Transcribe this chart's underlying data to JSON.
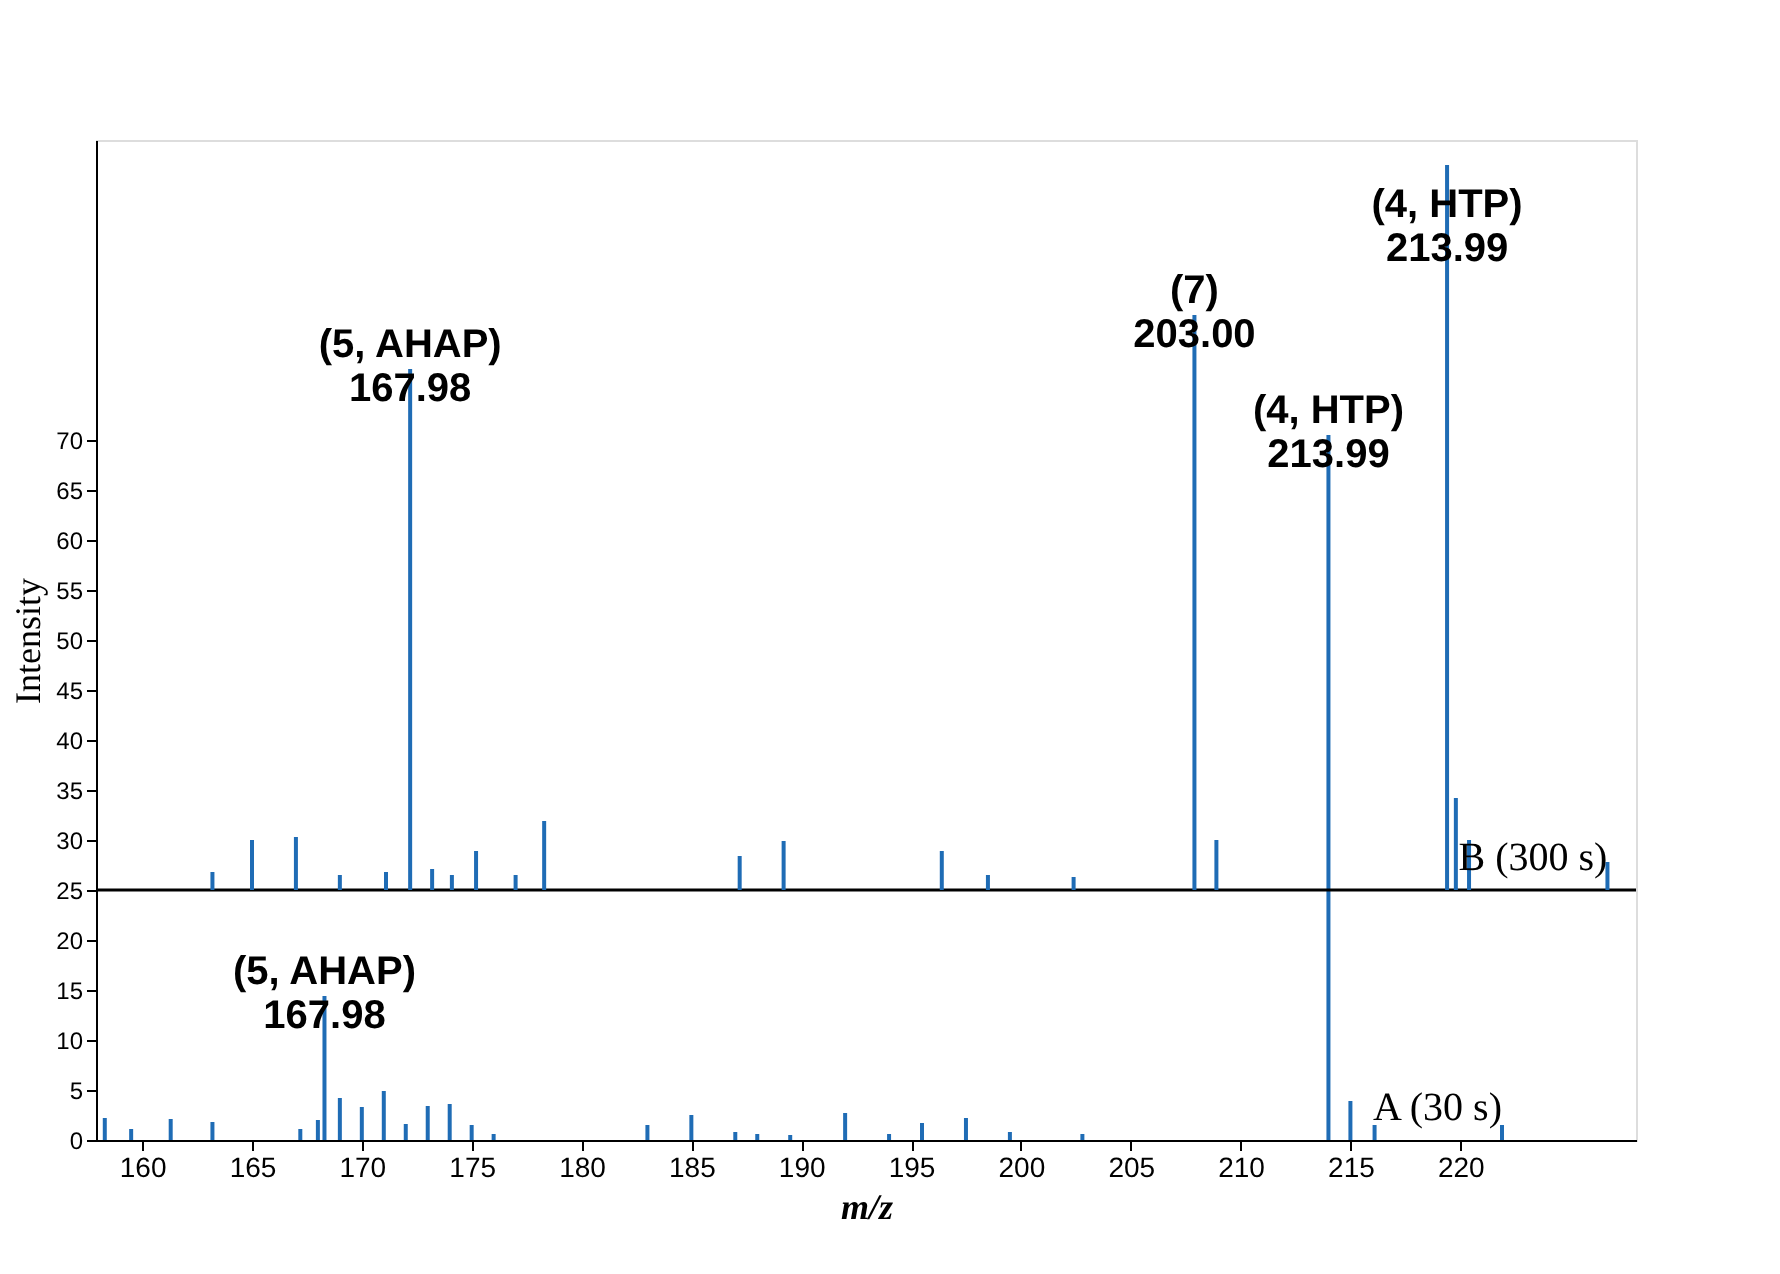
{
  "chart_data": {
    "type": "bar",
    "xlabel": "m/z",
    "ylabel": "Intensity",
    "xlim": [
      157.9,
      228
    ],
    "xticks": [
      160,
      165,
      170,
      175,
      180,
      185,
      190,
      195,
      200,
      205,
      210,
      215,
      220
    ],
    "ylim": [
      0,
      100
    ],
    "yticks": [
      0,
      5,
      10,
      15,
      20,
      25,
      30,
      35,
      40,
      45,
      50,
      55,
      60,
      65,
      70
    ],
    "series": [
      {
        "name": "A  (30 s)",
        "color": "#1f6cb5",
        "base": [
          0,
          0,
          0,
          0,
          0,
          0,
          0,
          0,
          0,
          0,
          0,
          0,
          0,
          0,
          0,
          0,
          0,
          0,
          0,
          0,
          0,
          0,
          0,
          0,
          0,
          0,
          0,
          0,
          0,
          0
        ],
        "x": [
          158.3,
          159.5,
          161.3,
          163.2,
          167.2,
          168.0,
          168.3,
          169.0,
          170.0,
          171.0,
          172.0,
          173.0,
          174.0,
          175.0,
          176.0,
          183.0,
          185.0,
          187.0,
          188.0,
          189.5,
          192.0,
          194.0,
          195.5,
          197.5,
          199.5,
          202.8,
          214.0,
          215.0,
          216.1,
          221.9
        ],
        "values": [
          2.2,
          1.1,
          2.1,
          1.8,
          1.1,
          2.0,
          14.4,
          4.2,
          3.3,
          4.9,
          1.6,
          3.4,
          3.6,
          1.5,
          0.6,
          1.5,
          2.5,
          0.8,
          0.6,
          0.5,
          2.7,
          0.6,
          1.7,
          2.2,
          0.8,
          0.6,
          70.5,
          3.9,
          1.5,
          1.5
        ]
      },
      {
        "name": "B  (300 s)",
        "color": "#1f6cb5",
        "base": [
          25,
          25,
          25,
          25,
          25,
          25,
          25,
          25,
          25,
          25,
          25,
          25,
          25,
          25,
          25,
          25,
          25,
          25,
          25,
          25,
          25,
          25
        ],
        "x": [
          163.2,
          165.0,
          167.0,
          169.0,
          171.1,
          172.2,
          173.2,
          174.1,
          175.2,
          177.0,
          178.3,
          187.2,
          189.2,
          196.4,
          198.5,
          202.4,
          207.9,
          208.9,
          219.4,
          219.8,
          220.4,
          226.7
        ],
        "values": [
          1.8,
          5.0,
          5.3,
          1.5,
          1.8,
          52.1,
          2.1,
          1.5,
          3.9,
          1.5,
          6.9,
          3.4,
          4.9,
          3.9,
          1.5,
          1.3,
          57.5,
          5.0,
          72.5,
          9.2,
          5.0,
          2.8
        ]
      }
    ],
    "ref_lines": [
      {
        "axis": "y",
        "value": 25,
        "color": "#000000"
      }
    ],
    "annotations": [
      {
        "text": "(5, AHAP)\n167.98",
        "x": 168.3,
        "y": 14.4
      },
      {
        "text": "(5, AHAP)\n167.98",
        "x": 172.2,
        "y": 77.1
      },
      {
        "text": "(7)\n203.00",
        "x": 207.9,
        "y": 82.5
      },
      {
        "text": "(4, HTP)\n213.99",
        "x": 214.0,
        "y": 70.5
      },
      {
        "text": "(4, HTP)\n213.99",
        "x": 219.4,
        "y": 97.5
      }
    ]
  }
}
